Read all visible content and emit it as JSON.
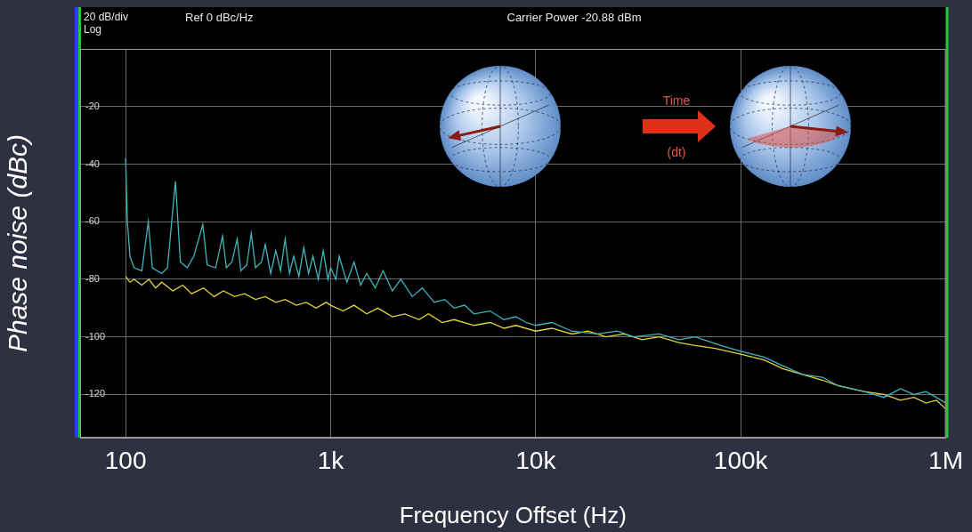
{
  "chart_data": {
    "type": "line",
    "xlabel": "Frequency Offset (Hz)",
    "ylabel": "Phase noise (dBc)",
    "log": "x",
    "grid": true,
    "xlim": [
      60,
      1000000
    ],
    "xticks": [
      100,
      {
        "value": 1000,
        "label": "1k"
      },
      {
        "value": 10000,
        "label": "10k"
      },
      {
        "value": 100000,
        "label": "100k"
      },
      {
        "value": 1000000,
        "label": "1M"
      }
    ],
    "ylim": [
      -135,
      0
    ],
    "yticks": [
      -20,
      -40,
      -60,
      -80,
      -100,
      -120
    ],
    "annotations": [
      "20 dB/div",
      "Log",
      "Ref 0 dBc/Hz",
      "Carrier Power -20.88 dBm",
      "Time",
      "(dt)"
    ],
    "series": [
      {
        "color": "#3fb6bd",
        "x": [
          100,
          102,
          105,
          110,
          120,
          129,
          135,
          150,
          160,
          175,
          185,
          200,
          215,
          238,
          250,
          275,
          297,
          310,
          330,
          350,
          365,
          390,
          410,
          430,
          460,
          480,
          510,
          540,
          570,
          600,
          630,
          660,
          700,
          740,
          780,
          820,
          870,
          920,
          970,
          1000,
          1060,
          1100,
          1200,
          1300,
          1400,
          1500,
          1650,
          1800,
          2000,
          2200,
          2500,
          2800,
          3200,
          3600,
          4000,
          4500,
          5000,
          6000,
          7000,
          8000,
          9000,
          10000,
          12000,
          15000,
          20000,
          25000,
          30000,
          40000,
          50000,
          60000,
          80000,
          100000,
          130000,
          160000,
          200000,
          250000,
          300000,
          400000,
          500000,
          600000,
          700000,
          800000,
          900000,
          1000000
        ],
        "values": [
          -38,
          -60,
          -72,
          -76,
          -77,
          -60,
          -76,
          -78,
          -76,
          -46,
          -74,
          -76,
          -72,
          -61,
          -75,
          -76,
          -65,
          -76,
          -74,
          -66,
          -77,
          -75,
          -64,
          -76,
          -74,
          -68,
          -78,
          -70,
          -77,
          -66,
          -78,
          -72,
          -79,
          -69,
          -78,
          -72,
          -80,
          -70,
          -80,
          -76,
          -80,
          -72,
          -81,
          -74,
          -82,
          -78,
          -83,
          -77,
          -84,
          -80,
          -86,
          -83,
          -88,
          -87,
          -90,
          -89,
          -92,
          -91,
          -94,
          -93,
          -95,
          -96,
          -95,
          -98,
          -99,
          -98,
          -100,
          -99,
          -101,
          -100,
          -103,
          -105,
          -107,
          -110,
          -113,
          -114,
          -117,
          -119,
          -121,
          -118,
          -120,
          -119,
          -121,
          -123
        ]
      },
      {
        "color": "#e3d43a",
        "x": [
          100,
          105,
          110,
          120,
          130,
          140,
          150,
          170,
          190,
          210,
          240,
          270,
          300,
          340,
          380,
          430,
          480,
          540,
          600,
          680,
          760,
          850,
          950,
          1000,
          1150,
          1300,
          1500,
          1700,
          2000,
          2300,
          2700,
          3000,
          3500,
          4000,
          5000,
          6000,
          7000,
          8000,
          10000,
          12000,
          15000,
          18000,
          22000,
          27000,
          33000,
          40000,
          50000,
          60000,
          75000,
          100000,
          130000,
          160000,
          200000,
          250000,
          300000,
          400000,
          500000,
          600000,
          700000,
          800000,
          900000,
          1000000
        ],
        "values": [
          -79,
          -81,
          -80,
          -82,
          -80,
          -83,
          -81,
          -84,
          -82,
          -85,
          -83,
          -86,
          -84,
          -86,
          -85,
          -87,
          -86,
          -88,
          -87,
          -89,
          -88,
          -90,
          -88,
          -89,
          -91,
          -89,
          -92,
          -90,
          -93,
          -92,
          -94,
          -92,
          -95,
          -94,
          -96,
          -95,
          -97,
          -96,
          -98,
          -97,
          -99,
          -98,
          -100,
          -99,
          -101,
          -100,
          -102,
          -103,
          -104,
          -106,
          -108,
          -111,
          -113,
          -115,
          -117,
          -119,
          -120,
          -122,
          -121,
          -123,
          -122,
          -125
        ]
      }
    ]
  }
}
